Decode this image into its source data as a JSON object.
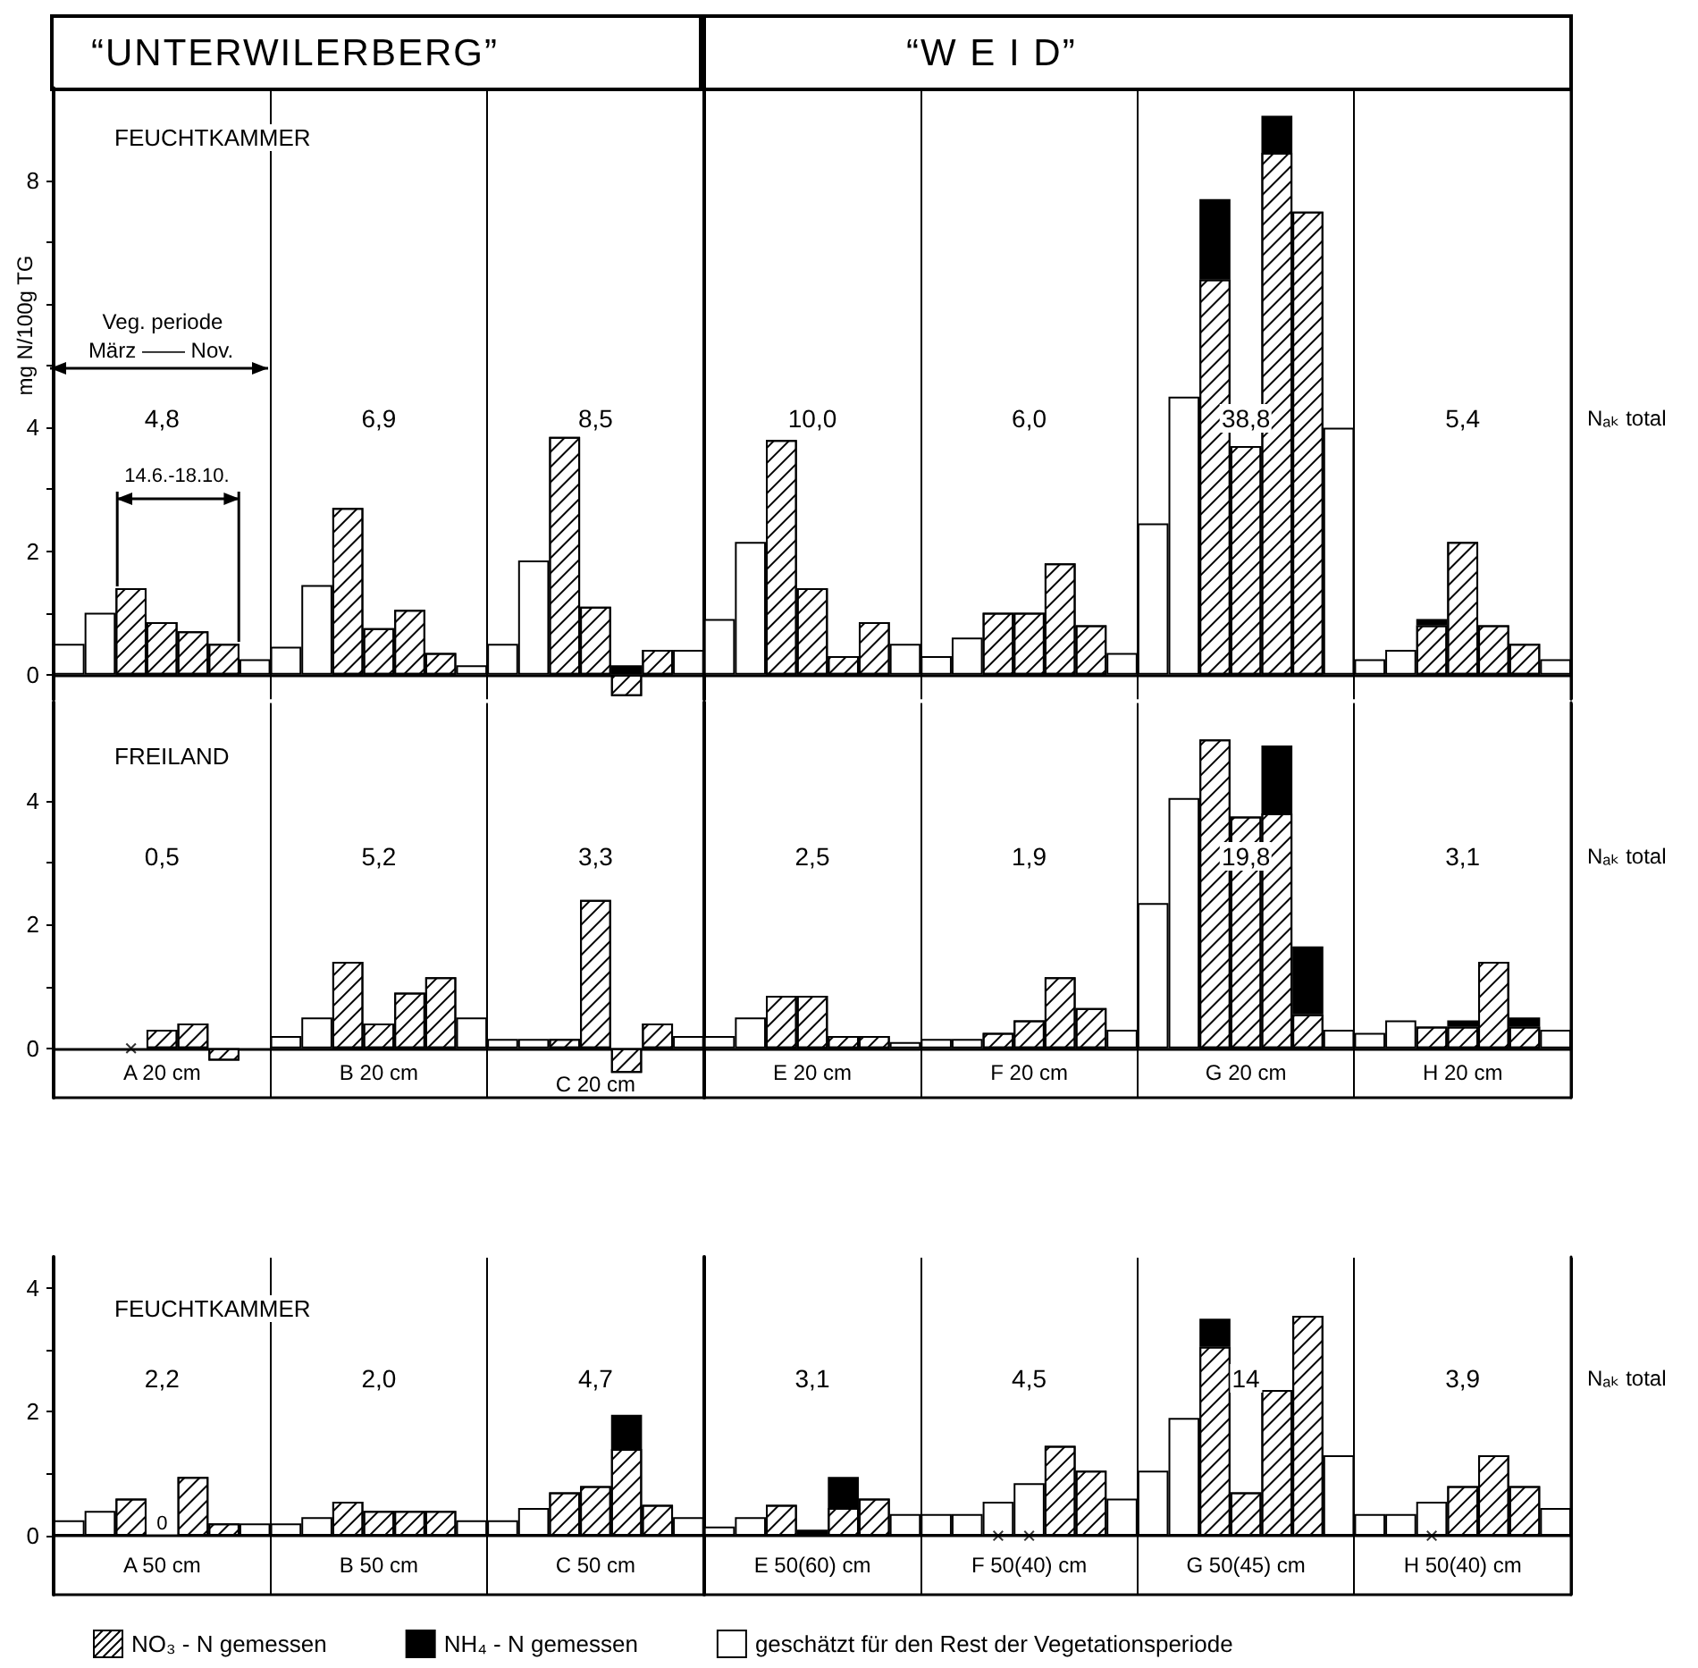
{
  "chart_data": [
    {
      "type": "bar",
      "stacked": true,
      "subtitle": "FEUCHTKAMMER",
      "ylabel": "mg N/100g TG",
      "annotations": [
        "“UNTERWILERBERG”",
        "“W E I D”",
        "4,8",
        "6,9",
        "8,5",
        "10,0",
        "6,0",
        "38,8",
        "5,4",
        "Nₐₖ total",
        "Veg. periode",
        "März —— Nov.",
        "14.6.-18.10."
      ],
      "categories": [
        null,
        null,
        null,
        null,
        null,
        null,
        null,
        null,
        null,
        null,
        null,
        null,
        null,
        null,
        null,
        null,
        null,
        null,
        null,
        null,
        null,
        null,
        null,
        null,
        null,
        null,
        null,
        null,
        null,
        null,
        null,
        null,
        null,
        null,
        null,
        null,
        null,
        null,
        null,
        null,
        null,
        null,
        null,
        null,
        null,
        null,
        null,
        null,
        null
      ],
      "ylim": [
        -0.4,
        9.5
      ],
      "yticks": [
        0,
        {
          "value": 1,
          "label": null
        },
        2,
        {
          "value": 3,
          "label": null
        },
        4,
        {
          "value": 5,
          "label": null
        },
        {
          "value": 6,
          "label": null
        },
        {
          "value": 7,
          "label": null
        },
        8
      ],
      "series": [
        {
          "color": "#ffffff",
          "values": [
            null,
            null,
            1.4,
            0.85,
            0.7,
            0.5,
            null,
            null,
            null,
            2.7,
            0.75,
            1.05,
            0.35,
            null,
            null,
            null,
            3.85,
            1.1,
            -0.35,
            0.4,
            null,
            null,
            null,
            3.8,
            1.4,
            0.3,
            0.85,
            null,
            null,
            null,
            1.0,
            1.0,
            1.8,
            0.8,
            null,
            null,
            null,
            6.4,
            3.7,
            8.45,
            7.5,
            null,
            null,
            null,
            0.8,
            2.15,
            0.8,
            0.5,
            null
          ]
        },
        {
          "color": "#000000",
          "values": [
            null,
            null,
            null,
            null,
            null,
            null,
            null,
            null,
            null,
            null,
            null,
            null,
            null,
            null,
            null,
            null,
            null,
            null,
            0.15,
            null,
            null,
            null,
            null,
            null,
            null,
            null,
            null,
            null,
            null,
            null,
            null,
            null,
            null,
            null,
            null,
            null,
            null,
            1.3,
            null,
            0.6,
            null,
            null,
            null,
            null,
            0.1,
            null,
            null,
            null,
            null
          ]
        },
        {
          "color": "#ffffff",
          "values": [
            0.5,
            1.0,
            null,
            null,
            null,
            null,
            0.25,
            0.45,
            1.45,
            null,
            null,
            null,
            null,
            0.15,
            0.5,
            1.85,
            null,
            null,
            null,
            null,
            0.4,
            0.9,
            2.15,
            null,
            null,
            null,
            null,
            0.5,
            0.3,
            0.6,
            null,
            null,
            null,
            null,
            0.35,
            2.45,
            4.5,
            null,
            null,
            null,
            null,
            4.0,
            0.25,
            0.4,
            null,
            null,
            null,
            null,
            0.25
          ]
        }
      ]
    },
    {
      "type": "bar",
      "stacked": true,
      "subtitle": "FREILAND",
      "annotations": [
        "0,5",
        "5,2",
        "3,3",
        "2,5",
        "1,9",
        "19,8",
        "3,1",
        "Nₐₖ total"
      ],
      "categories": [
        null,
        null,
        null,
        "A 20 cm",
        null,
        null,
        null,
        null,
        null,
        null,
        "B 20 cm",
        null,
        null,
        null,
        null,
        null,
        null,
        "C 20 cm",
        null,
        null,
        null,
        null,
        null,
        null,
        "E 20 cm",
        null,
        null,
        null,
        null,
        null,
        null,
        "F 20 cm",
        null,
        null,
        null,
        null,
        null,
        null,
        "G 20 cm",
        null,
        null,
        null,
        null,
        null,
        null,
        "H 20 cm",
        null,
        null,
        null
      ],
      "ylim": [
        -0.8,
        5.6
      ],
      "yticks": [
        0,
        {
          "value": 1,
          "label": null
        },
        2,
        {
          "value": 3,
          "label": null
        },
        4
      ],
      "series": [
        {
          "color": "#ffffff",
          "values": [
            null,
            null,
            null,
            0.3,
            0.4,
            -0.2,
            null,
            null,
            null,
            1.4,
            0.4,
            0.9,
            1.15,
            null,
            null,
            null,
            0.15,
            2.4,
            -0.4,
            0.4,
            null,
            null,
            null,
            0.85,
            0.85,
            0.2,
            0.2,
            null,
            null,
            null,
            0.25,
            0.45,
            1.15,
            0.65,
            null,
            null,
            null,
            5.0,
            3.75,
            3.8,
            0.55,
            null,
            null,
            null,
            0.35,
            0.35,
            1.4,
            0.35,
            null
          ]
        },
        {
          "color": "#000000",
          "values": [
            null,
            null,
            null,
            null,
            null,
            null,
            null,
            null,
            null,
            null,
            null,
            null,
            null,
            null,
            null,
            null,
            null,
            null,
            null,
            null,
            null,
            null,
            null,
            null,
            null,
            null,
            null,
            null,
            null,
            null,
            null,
            null,
            null,
            null,
            null,
            null,
            null,
            null,
            null,
            1.1,
            1.1,
            null,
            null,
            null,
            null,
            0.1,
            null,
            0.15,
            null
          ]
        },
        {
          "color": "#ffffff",
          "values": [
            null,
            null,
            null,
            null,
            null,
            null,
            null,
            0.2,
            0.5,
            null,
            null,
            null,
            null,
            0.5,
            0.15,
            0.15,
            null,
            null,
            null,
            null,
            0.2,
            0.2,
            0.5,
            null,
            null,
            null,
            null,
            0.1,
            0.15,
            0.15,
            null,
            null,
            null,
            null,
            0.3,
            2.35,
            4.05,
            null,
            null,
            null,
            null,
            0.3,
            0.25,
            0.45,
            null,
            null,
            null,
            null,
            0.3
          ]
        },
        {
          "type": "scatter",
          "marker": "cross",
          "color": "#000000",
          "values": [
            null,
            null,
            0,
            null,
            null,
            null,
            null,
            null,
            null,
            null,
            null,
            null,
            null,
            null,
            null,
            null,
            null,
            null,
            null,
            null,
            null,
            null,
            null,
            null,
            null,
            null,
            null,
            null,
            null,
            null,
            null,
            null,
            null,
            null,
            null,
            null,
            null,
            null,
            null,
            null,
            null,
            null,
            null,
            null,
            null,
            null,
            null,
            null,
            null
          ]
        }
      ]
    },
    {
      "type": "bar",
      "stacked": true,
      "subtitle": "FEUCHTKAMMER",
      "legend": "bottom",
      "annotations": [
        "2,2",
        "2,0",
        "4,7",
        "3,1",
        "4,5",
        "14",
        "3,9",
        "Nₐₖ total"
      ],
      "categories": [
        null,
        null,
        null,
        "A 50 cm",
        null,
        null,
        null,
        null,
        null,
        null,
        "B 50 cm",
        null,
        null,
        null,
        null,
        null,
        null,
        "C 50 cm",
        null,
        null,
        null,
        null,
        null,
        null,
        "E 50(60) cm",
        null,
        null,
        null,
        null,
        null,
        null,
        "F 50(40) cm",
        null,
        null,
        null,
        null,
        null,
        null,
        "G 50(45) cm",
        null,
        null,
        null,
        null,
        null,
        null,
        "H 50(40) cm",
        null,
        null,
        null
      ],
      "ylim": [
        -0.95,
        4.5
      ],
      "yticks": [
        0,
        {
          "value": 1,
          "label": null
        },
        2,
        {
          "value": 3,
          "label": null
        },
        4
      ],
      "series": [
        {
          "name": "NO₃ - N gemessen",
          "color": "#ffffff",
          "values": [
            null,
            null,
            0.6,
            0,
            0.95,
            0.2,
            null,
            null,
            null,
            0.55,
            0.4,
            0.4,
            0.4,
            null,
            null,
            null,
            0.7,
            0.8,
            1.4,
            0.5,
            null,
            null,
            null,
            0.5,
            null,
            0.45,
            0.6,
            null,
            null,
            null,
            null,
            null,
            1.45,
            1.05,
            null,
            null,
            null,
            3.05,
            0.7,
            2.35,
            3.55,
            null,
            null,
            null,
            null,
            0.8,
            1.3,
            0.8,
            null
          ],
          "value_labels": [
            null,
            null,
            null,
            "0",
            null,
            null,
            null,
            null,
            null,
            null,
            null,
            null,
            null,
            null,
            null,
            null,
            null,
            null,
            null,
            null,
            null,
            null,
            null,
            null,
            null,
            null,
            null,
            null,
            null,
            null,
            null,
            null,
            null,
            null,
            null,
            null,
            null,
            null,
            null,
            null,
            null,
            null,
            null,
            null,
            null,
            null,
            null,
            null,
            null
          ]
        },
        {
          "name": "NH₄ - N gemessen",
          "color": "#000000",
          "values": [
            null,
            null,
            null,
            null,
            null,
            null,
            null,
            null,
            null,
            null,
            null,
            null,
            null,
            null,
            null,
            null,
            null,
            null,
            0.55,
            null,
            null,
            null,
            null,
            null,
            0.1,
            0.5,
            null,
            null,
            null,
            null,
            null,
            null,
            null,
            null,
            null,
            null,
            null,
            0.45,
            null,
            null,
            null,
            null,
            null,
            null,
            null,
            null,
            null,
            null,
            null
          ]
        },
        {
          "name": "geschätzt für den Rest der Vegetationsperiode",
          "color": "#ffffff",
          "values": [
            0.25,
            0.4,
            null,
            null,
            null,
            null,
            0.2,
            0.2,
            0.3,
            null,
            null,
            null,
            null,
            0.25,
            0.25,
            0.45,
            null,
            null,
            null,
            null,
            0.3,
            0.15,
            0.3,
            null,
            null,
            null,
            null,
            0.35,
            0.35,
            0.35,
            0.55,
            0.85,
            null,
            null,
            0.6,
            1.05,
            1.9,
            null,
            null,
            null,
            null,
            1.3,
            0.35,
            0.35,
            0.55,
            null,
            null,
            null,
            0.45
          ]
        },
        {
          "type": "scatter",
          "marker": "cross",
          "color": "#000000",
          "values": [
            null,
            null,
            null,
            null,
            null,
            null,
            null,
            null,
            null,
            null,
            null,
            null,
            null,
            null,
            null,
            null,
            null,
            null,
            null,
            null,
            null,
            null,
            null,
            null,
            null,
            null,
            null,
            null,
            null,
            null,
            0,
            0,
            null,
            null,
            null,
            null,
            null,
            null,
            null,
            null,
            null,
            null,
            null,
            null,
            0,
            null,
            null,
            null,
            null
          ]
        }
      ]
    }
  ]
}
